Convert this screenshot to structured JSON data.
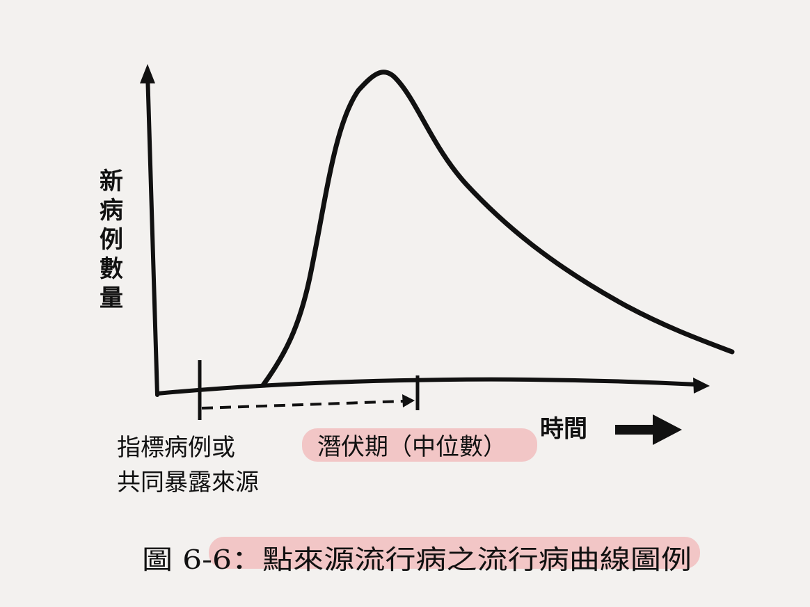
{
  "diagram": {
    "y_axis_label": "新病例數量",
    "x_axis_label": "時間",
    "start_marker_label_line1": "指標病例或",
    "start_marker_label_line2": "共同暴露來源",
    "incubation_label": "潛伏期（中位數）",
    "caption": "圖 6-6：點來源流行病之流行病曲線圖例",
    "highlight_color": "#f1b7b8"
  }
}
